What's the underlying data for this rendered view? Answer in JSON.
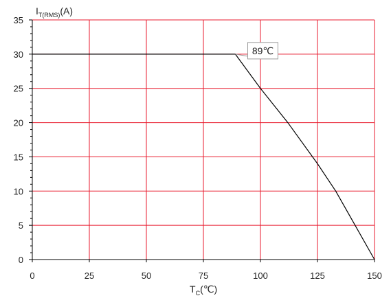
{
  "chart_data": {
    "type": "line",
    "title": "",
    "xlabel": {
      "main": "T",
      "sub": "C",
      "unit": "(℃)"
    },
    "ylabel": {
      "main": "I",
      "sub": "T(RMS)",
      "unit": "(A)"
    },
    "xlim": [
      0,
      150
    ],
    "ylim": [
      0,
      35
    ],
    "xticks": [
      0,
      25,
      50,
      75,
      100,
      125,
      150
    ],
    "yticks": [
      0,
      5,
      10,
      15,
      20,
      25,
      30,
      35
    ],
    "grid": true,
    "colors": {
      "grid": "#e8192c",
      "line": "#000000",
      "axis": "#000000",
      "annotation_border": "#999999"
    },
    "series": [
      {
        "x": [
          0,
          89,
          100,
          112,
          125,
          133,
          150
        ],
        "y": [
          30,
          30,
          25,
          20,
          14,
          10,
          0
        ]
      }
    ],
    "annotations": [
      {
        "text": "89℃",
        "x": 89,
        "y": 30
      }
    ]
  }
}
